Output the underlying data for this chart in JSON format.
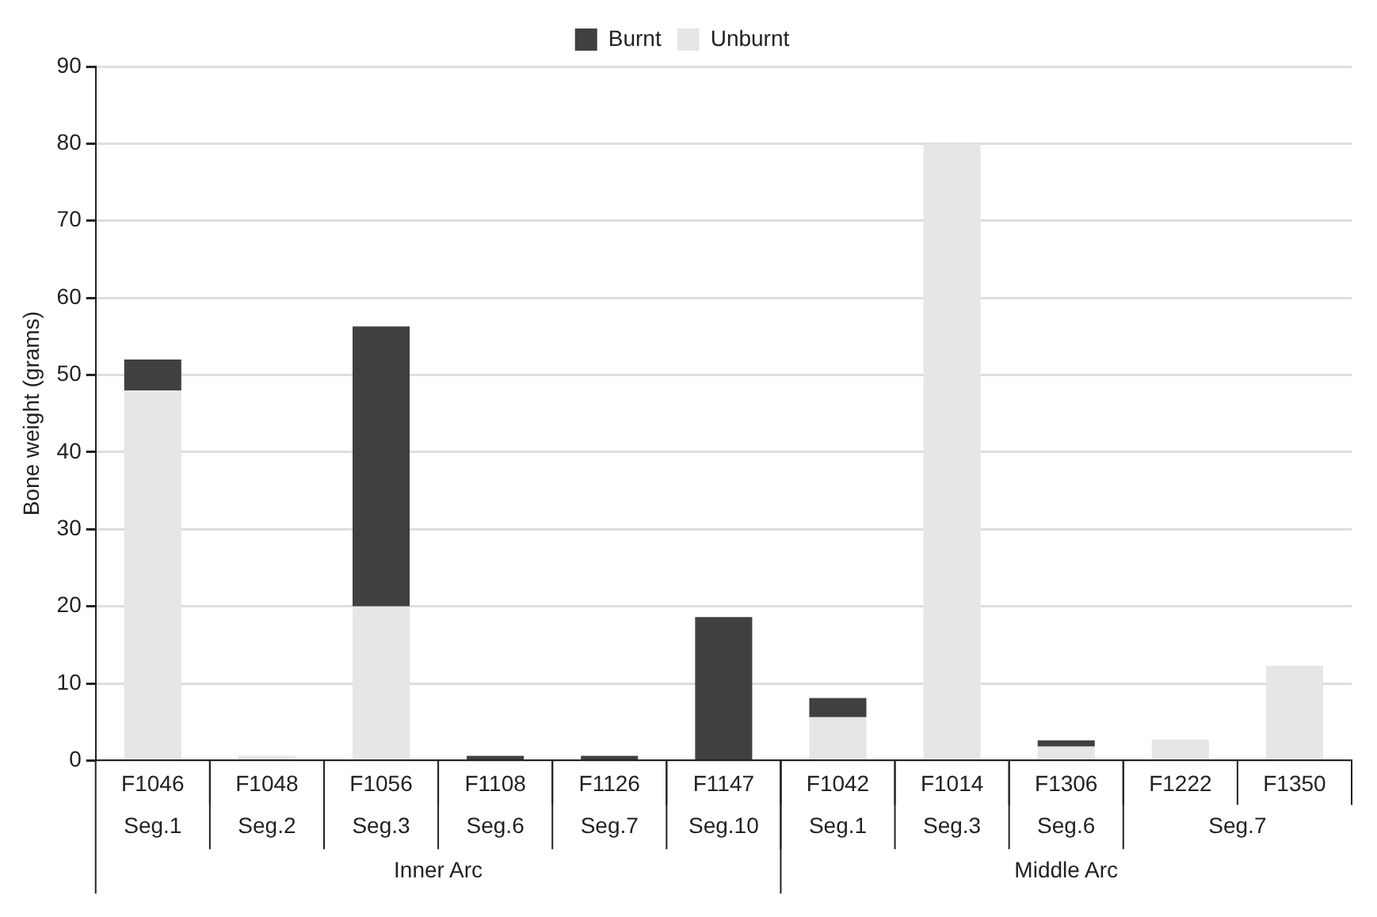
{
  "chart_data": {
    "type": "bar",
    "ylabel": "Bone weight (grams)",
    "categories": [
      "F1046",
      "F1048",
      "F1056",
      "F1108",
      "F1126",
      "F1147",
      "F1042",
      "F1014",
      "F1306",
      "F1222",
      "F1350"
    ],
    "series": [
      {
        "name": "Unburnt",
        "color": "#e5e6e8",
        "values": [
          48,
          0.6,
          20,
          0,
          0,
          0,
          5.6,
          80,
          1.8,
          2.7,
          12.3
        ]
      },
      {
        "name": "Burnt",
        "color": "#404042",
        "values": [
          4,
          0,
          36.3,
          0.6,
          0.6,
          18.6,
          2.5,
          0,
          0.8,
          0,
          0
        ]
      }
    ],
    "stacked": true,
    "ylim": [
      0,
      90
    ],
    "yticks": [
      0,
      10,
      20,
      30,
      40,
      50,
      60,
      70,
      80,
      90
    ],
    "grid": "y",
    "legend": "top",
    "annotations": [
      "Seg.1",
      "Seg.2",
      "Seg.3",
      "Seg.6",
      "Seg.7",
      "Seg.10",
      "Seg.1",
      "Seg.3",
      "Seg.6",
      "Seg.7",
      "Inner Arc",
      "Middle Arc"
    ]
  }
}
